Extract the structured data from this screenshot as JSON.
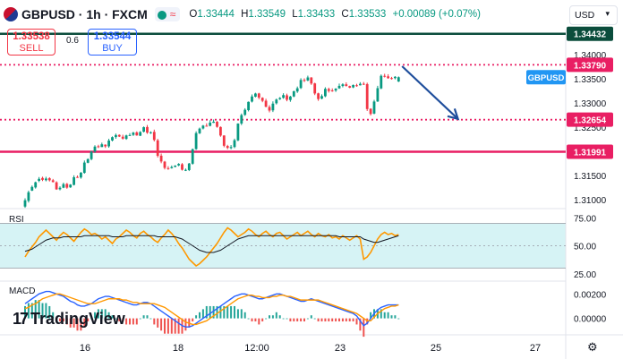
{
  "header": {
    "symbol": "GBPUSD · 1h · FXCM",
    "open_label": "O",
    "open": "1.33444",
    "high_label": "H",
    "high": "1.33549",
    "low_label": "L",
    "low": "1.33433",
    "close_label": "C",
    "close": "1.33533",
    "change": "+0.00089 (+0.07%)",
    "indicator_glyph": "≈"
  },
  "trade": {
    "sell_price": "1.33538",
    "sell_label": "SELL",
    "spread": "0.6",
    "buy_price": "1.33544",
    "buy_label": "BUY"
  },
  "currency": "USD",
  "watermark": "TradingView",
  "watermark_logo": "17",
  "price_axis": {
    "range": [
      1.3085,
      1.3452
    ],
    "ticks": [
      "1.34000",
      "1.33500",
      "1.33000",
      "1.32500",
      "1.31500",
      "1.31000"
    ]
  },
  "levels": [
    {
      "name": "top-resistance",
      "value": 1.34432,
      "label": "1.34432",
      "color": "#0b4d3c",
      "style": "solid"
    },
    {
      "name": "current-price",
      "value": 1.3379,
      "label": "1.33790",
      "color": "#e91e63",
      "style": "dotted"
    },
    {
      "name": "support-1",
      "value": 1.32654,
      "label": "1.32654",
      "color": "#e91e63",
      "style": "dotted"
    },
    {
      "name": "support-2",
      "value": 1.31991,
      "label": "1.31991",
      "color": "#e91e63",
      "style": "solid"
    }
  ],
  "symbol_tag": "GBPUSD",
  "projection_arrow": {
    "from_bar": 108,
    "from_value": 1.3376,
    "to_bar": 124,
    "to_value": 1.3267,
    "color": "#1f4e9c"
  },
  "time_axis": [
    "16",
    "18",
    "12:00",
    "23",
    "25",
    "27"
  ],
  "rsi": {
    "label": "RSI",
    "range": [
      20,
      80
    ],
    "ticks": [
      "75.00",
      "50.00",
      "25.00"
    ],
    "band": [
      30,
      70
    ],
    "rsi_values": [
      40,
      45,
      49,
      53,
      58,
      61,
      64,
      61,
      58,
      55,
      59,
      62,
      60,
      57,
      54,
      58,
      62,
      65,
      63,
      60,
      61,
      59,
      56,
      58,
      55,
      52,
      56,
      58,
      61,
      64,
      62,
      59,
      57,
      61,
      63,
      60,
      58,
      55,
      53,
      57,
      60,
      64,
      61,
      57,
      52,
      48,
      43,
      38,
      35,
      32,
      34,
      37,
      40,
      44,
      48,
      52,
      57,
      62,
      66,
      64,
      61,
      58,
      60,
      62,
      65,
      63,
      60,
      58,
      61,
      63,
      60,
      58,
      61,
      62,
      59,
      56,
      58,
      60,
      62,
      59,
      61,
      63,
      60,
      58,
      61,
      59,
      58,
      60,
      57,
      58,
      56,
      59,
      57,
      55,
      57,
      59,
      56,
      38,
      40,
      44,
      50,
      56,
      60,
      62,
      60,
      61,
      59,
      60
    ],
    "ma_values": [
      45,
      46,
      47,
      49,
      51,
      53,
      55,
      56,
      57,
      57,
      57,
      58,
      58,
      58,
      58,
      58,
      58,
      59,
      59,
      59,
      59,
      59,
      59,
      59,
      59,
      58,
      58,
      58,
      58,
      59,
      59,
      59,
      59,
      59,
      59,
      59,
      59,
      59,
      58,
      58,
      58,
      58,
      58,
      58,
      57,
      56,
      54,
      52,
      50,
      48,
      46,
      45,
      44,
      44,
      44,
      45,
      46,
      48,
      50,
      52,
      54,
      56,
      57,
      58,
      59,
      59,
      59,
      59,
      59,
      59,
      59,
      59,
      59,
      59,
      59,
      59,
      59,
      59,
      59,
      59,
      59,
      59,
      59,
      59,
      59,
      59,
      59,
      59,
      59,
      59,
      58,
      58,
      58,
      58,
      58,
      58,
      58,
      56,
      55,
      54,
      53,
      53,
      54,
      55,
      56,
      57,
      58,
      59
    ]
  },
  "macd": {
    "label": "MACD",
    "range": [
      -0.0012,
      0.0029
    ],
    "ticks": [
      "0.00200",
      "0.00000"
    ],
    "macd_values": [
      0.0012,
      0.0014,
      0.0016,
      0.0018,
      0.002,
      0.0021,
      0.0022,
      0.0022,
      0.0021,
      0.002,
      0.0019,
      0.0018,
      0.0016,
      0.0014,
      0.0013,
      0.0011,
      0.001,
      0.001,
      0.0011,
      0.0012,
      0.0014,
      0.0016,
      0.0017,
      0.0018,
      0.0018,
      0.0017,
      0.0016,
      0.0015,
      0.0014,
      0.0013,
      0.0012,
      0.0011,
      0.0011,
      0.0012,
      0.0013,
      0.0013,
      0.0012,
      0.001,
      0.0008,
      0.0006,
      0.0004,
      0.0002,
      0,
      -0.0002,
      -0.0004,
      -0.0006,
      -0.0007,
      -0.0007,
      -0.0006,
      -0.0004,
      -0.0002,
      0,
      0.0002,
      0.0004,
      0.0006,
      0.0008,
      0.001,
      0.0012,
      0.0014,
      0.0016,
      0.0018,
      0.0019,
      0.002,
      0.002,
      0.0019,
      0.0018,
      0.0017,
      0.0016,
      0.0016,
      0.0017,
      0.0018,
      0.0019,
      0.002,
      0.002,
      0.0019,
      0.0018,
      0.0017,
      0.0016,
      0.0015,
      0.0014,
      0.0014,
      0.0015,
      0.0016,
      0.0015,
      0.0014,
      0.0013,
      0.0012,
      0.0011,
      0.001,
      0.0009,
      0.0008,
      0.0007,
      0.0006,
      0.0005,
      0.0004,
      0.0002,
      -0.0002,
      -0.0006,
      -0.0004,
      0,
      0.0004,
      0.0007,
      0.0009,
      0.001,
      0.0011,
      0.0011,
      0.0011,
      0.0011
    ],
    "signal_values": [
      0.0008,
      0.0009,
      0.0011,
      0.0012,
      0.0014,
      0.0016,
      0.0017,
      0.0018,
      0.0019,
      0.002,
      0.002,
      0.0019,
      0.0018,
      0.0017,
      0.0016,
      0.0015,
      0.0014,
      0.0013,
      0.0012,
      0.0012,
      0.0012,
      0.0013,
      0.0014,
      0.0015,
      0.0016,
      0.0016,
      0.0016,
      0.0016,
      0.0015,
      0.0015,
      0.0014,
      0.0013,
      0.0013,
      0.0012,
      0.0012,
      0.0012,
      0.0012,
      0.0012,
      0.0011,
      0.001,
      0.0009,
      0.0007,
      0.0005,
      0.0003,
      0.0001,
      -0.0001,
      -0.0003,
      -0.0004,
      -0.0005,
      -0.0005,
      -0.0004,
      -0.0003,
      -0.0002,
      0,
      0.0002,
      0.0004,
      0.0006,
      0.0008,
      0.001,
      0.0012,
      0.0014,
      0.0016,
      0.0017,
      0.0018,
      0.0019,
      0.0019,
      0.0018,
      0.0018,
      0.0017,
      0.0017,
      0.0017,
      0.0018,
      0.0018,
      0.0019,
      0.0019,
      0.0018,
      0.0018,
      0.0017,
      0.0016,
      0.0015,
      0.0015,
      0.0015,
      0.0015,
      0.0015,
      0.0015,
      0.0014,
      0.0013,
      0.0012,
      0.0011,
      0.001,
      0.0009,
      0.0008,
      0.0007,
      0.0006,
      0.0005,
      0.0004,
      0.0002,
      0,
      -0.0002,
      -0.0002,
      0.0001,
      0.0004,
      0.0006,
      0.0008,
      0.0009,
      0.001,
      0.001,
      0.0011
    ]
  },
  "colors": {
    "up": "#089981",
    "down": "#f23645",
    "rsi_line": "#ff9800",
    "rsi_ma": "#131722",
    "rsi_band": "#d6f3f5",
    "macd_line": "#2962ff",
    "signal_line": "#ff9800",
    "level_pink": "#e91e63",
    "arrow": "#1f4e9c",
    "tag_blue": "#2196f3"
  },
  "chart_data": {
    "type": "candlestick",
    "title": "GBPUSD · 1h · FXCM",
    "ylim": [
      1.3085,
      1.3452
    ],
    "close_values": [
      1.30985,
      1.31151,
      1.31262,
      1.31358,
      1.31428,
      1.31408,
      1.31435,
      1.31399,
      1.31363,
      1.31211,
      1.31244,
      1.31319,
      1.31247,
      1.31309,
      1.31462,
      1.31452,
      1.31555,
      1.31766,
      1.31836,
      1.31995,
      1.32096,
      1.32091,
      1.32144,
      1.32101,
      1.32221,
      1.32292,
      1.32336,
      1.32305,
      1.32261,
      1.32328,
      1.32335,
      1.32386,
      1.32328,
      1.32398,
      1.32498,
      1.32384,
      1.32393,
      1.32234,
      1.31905,
      1.31788,
      1.31656,
      1.31649,
      1.31673,
      1.31704,
      1.31738,
      1.31617,
      1.31615,
      1.31746,
      1.32042,
      1.32376,
      1.32469,
      1.32531,
      1.32523,
      1.32593,
      1.32611,
      1.32506,
      1.32325,
      1.32114,
      1.32071,
      1.32086,
      1.32229,
      1.32573,
      1.32749,
      1.32859,
      1.33023,
      1.33134,
      1.33195,
      1.33111,
      1.33044,
      1.32921,
      1.32842,
      1.32986,
      1.3307,
      1.33103,
      1.33163,
      1.33066,
      1.33133,
      1.33241,
      1.33304,
      1.33475,
      1.33469,
      1.33528,
      1.33402,
      1.33196,
      1.33081,
      1.33142,
      1.33292,
      1.3325,
      1.33255,
      1.33295,
      1.33354,
      1.33385,
      1.33353,
      1.33316,
      1.33371,
      1.33363,
      1.33396,
      1.33394,
      1.32874,
      1.32772,
      1.3303,
      1.33306,
      1.33562,
      1.33558,
      1.33513,
      1.33511,
      1.33542,
      1.33533
    ],
    "open_values": [
      1.30855,
      1.30973,
      1.31185,
      1.31251,
      1.31388,
      1.31447,
      1.31401,
      1.31442,
      1.31399,
      1.31357,
      1.31213,
      1.31245,
      1.31324,
      1.31253,
      1.31304,
      1.31468,
      1.31457,
      1.31553,
      1.31762,
      1.31837,
      1.31993,
      1.32103,
      1.32087,
      1.32136,
      1.32102,
      1.32223,
      1.32294,
      1.32339,
      1.32301,
      1.32256,
      1.32333,
      1.32339,
      1.32391,
      1.32322,
      1.32405,
      1.32502,
      1.32377,
      1.32401,
      1.32226,
      1.31908,
      1.31785,
      1.31651,
      1.31649,
      1.31677,
      1.31707,
      1.31731,
      1.31611,
      1.31611,
      1.31742,
      1.32046,
      1.32372,
      1.32472,
      1.32529,
      1.32526,
      1.32589,
      1.32611,
      1.32503,
      1.32327,
      1.32109,
      1.32066,
      1.32088,
      1.32225,
      1.32574,
      1.32753,
      1.32851,
      1.33029,
      1.3313,
      1.33196,
      1.33107,
      1.33047,
      1.32917,
      1.32847,
      1.32993,
      1.33078,
      1.33106,
      1.33158,
      1.33062,
      1.33134,
      1.33237,
      1.33309,
      1.33476,
      1.33465,
      1.33527,
      1.33405,
      1.33199,
      1.33089,
      1.33139,
      1.33288,
      1.33259,
      1.33258,
      1.33302,
      1.33351,
      1.33386,
      1.3335,
      1.33322,
      1.33366,
      1.33365,
      1.33397,
      1.33391,
      1.32879,
      1.3278,
      1.33031,
      1.33301,
      1.33561,
      1.33551,
      1.33515,
      1.33514,
      1.33444
    ],
    "high_values": [
      1.31025,
      1.31185,
      1.31291,
      1.31372,
      1.31466,
      1.31474,
      1.31472,
      1.31462,
      1.31427,
      1.31379,
      1.31274,
      1.3135,
      1.31344,
      1.3132,
      1.31502,
      1.31498,
      1.31572,
      1.31808,
      1.31853,
      1.32007,
      1.32125,
      1.32134,
      1.32178,
      1.32143,
      1.32259,
      1.32308,
      1.32366,
      1.32349,
      1.32342,
      1.32343,
      1.32374,
      1.32401,
      1.32412,
      1.32417,
      1.32513,
      1.32543,
      1.32412,
      1.32448,
      1.32258,
      1.31953,
      1.31799,
      1.31691,
      1.31705,
      1.31709,
      1.31753,
      1.31755,
      1.31643,
      1.31758,
      1.32057,
      1.32413,
      1.32491,
      1.32545,
      1.32578,
      1.32642,
      1.32657,
      1.32626,
      1.32514,
      1.32329,
      1.32133,
      1.32128,
      1.32261,
      1.32579,
      1.32781,
      1.32891,
      1.33031,
      1.33176,
      1.33211,
      1.3321,
      1.33118,
      1.33087,
      1.32954,
      1.33033,
      1.33091,
      1.33122,
      1.33201,
      1.33193,
      1.33147,
      1.33256,
      1.3334,
      1.33512,
      1.33509,
      1.33565,
      1.33535,
      1.33419,
      1.33212,
      1.33178,
      1.33325,
      1.33317,
      1.33302,
      1.33308,
      1.334,
      1.33408,
      1.33427,
      1.33358,
      1.33383,
      1.33397,
      1.3343,
      1.33434,
      1.3342,
      1.32891,
      1.33064,
      1.33355,
      1.3359,
      1.33604,
      1.33595,
      1.3354,
      1.33555,
      1.33549
    ],
    "low_values": [
      1.3083,
      1.30938,
      1.31176,
      1.31227,
      1.31361,
      1.31383,
      1.31377,
      1.31374,
      1.31354,
      1.31201,
      1.3119,
      1.31236,
      1.31224,
      1.31242,
      1.31292,
      1.3145,
      1.31432,
      1.31536,
      1.31751,
      1.31813,
      1.31967,
      1.32066,
      1.32086,
      1.32069,
      1.32073,
      1.32206,
      1.32259,
      1.32295,
      1.32241,
      1.32238,
      1.32321,
      1.32317,
      1.32321,
      1.32314,
      1.3239,
      1.3236,
      1.32359,
      1.32203,
      1.31871,
      1.31752,
      1.31623,
      1.31616,
      1.31641,
      1.31666,
      1.31691,
      1.31601,
      1.3159,
      1.3159,
      1.31723,
      1.32028,
      1.32357,
      1.32452,
      1.32516,
      1.32515,
      1.32586,
      1.32488,
      1.323,
      1.32083,
      1.32041,
      1.32041,
      1.32063,
      1.32208,
      1.32541,
      1.32733,
      1.32825,
      1.3301,
      1.33116,
      1.33076,
      1.33015,
      1.3291,
      1.32805,
      1.32812,
      1.32968,
      1.33062,
      1.33087,
      1.33036,
      1.33024,
      1.33119,
      1.33208,
      1.33289,
      1.33433,
      1.3345,
      1.33374,
      1.33163,
      1.33044,
      1.33077,
      1.33119,
      1.33215,
      1.33232,
      1.33228,
      1.33293,
      1.33323,
      1.33339,
      1.33306,
      1.33307,
      1.33336,
      1.33361,
      1.33372,
      1.32834,
      1.32741,
      1.32765,
      1.33021,
      1.33285,
      1.33528,
      1.33501,
      1.33485,
      1.33489,
      1.33433
    ]
  }
}
